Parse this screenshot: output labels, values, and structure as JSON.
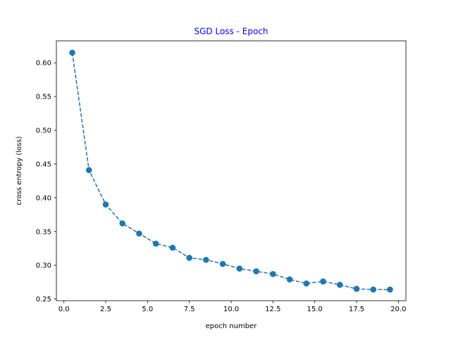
{
  "chart_data": {
    "type": "line",
    "title": "SGD Loss  - Epoch",
    "title_color": "#0000ff",
    "xlabel": "epoch number",
    "ylabel": "cross entropy (loss)",
    "xlim": [
      -0.45,
      20.45
    ],
    "ylim": [
      0.2475,
      0.6325
    ],
    "xticks": [
      0.0,
      2.5,
      5.0,
      7.5,
      10.0,
      12.5,
      15.0,
      17.5,
      20.0
    ],
    "xtick_labels": [
      "0.0",
      "2.5",
      "5.0",
      "7.5",
      "10.0",
      "12.5",
      "15.0",
      "17.5",
      "20.0"
    ],
    "yticks": [
      0.25,
      0.3,
      0.35,
      0.4,
      0.45,
      0.5,
      0.55,
      0.6
    ],
    "ytick_labels": [
      "0.25",
      "0.30",
      "0.35",
      "0.40",
      "0.45",
      "0.50",
      "0.55",
      "0.60"
    ],
    "grid": false,
    "series": [
      {
        "color": "#1f77b4",
        "line_style": "dashed",
        "marker": "circle",
        "x": [
          0.5,
          1.5,
          2.5,
          3.5,
          4.5,
          5.5,
          6.5,
          7.5,
          8.5,
          9.5,
          10.5,
          11.5,
          12.5,
          13.5,
          14.5,
          15.5,
          16.5,
          17.5,
          18.5,
          19.5
        ],
        "y": [
          0.615,
          0.441,
          0.39,
          0.362,
          0.347,
          0.332,
          0.326,
          0.311,
          0.308,
          0.302,
          0.295,
          0.291,
          0.287,
          0.279,
          0.273,
          0.276,
          0.271,
          0.265,
          0.264,
          0.264
        ]
      }
    ]
  }
}
